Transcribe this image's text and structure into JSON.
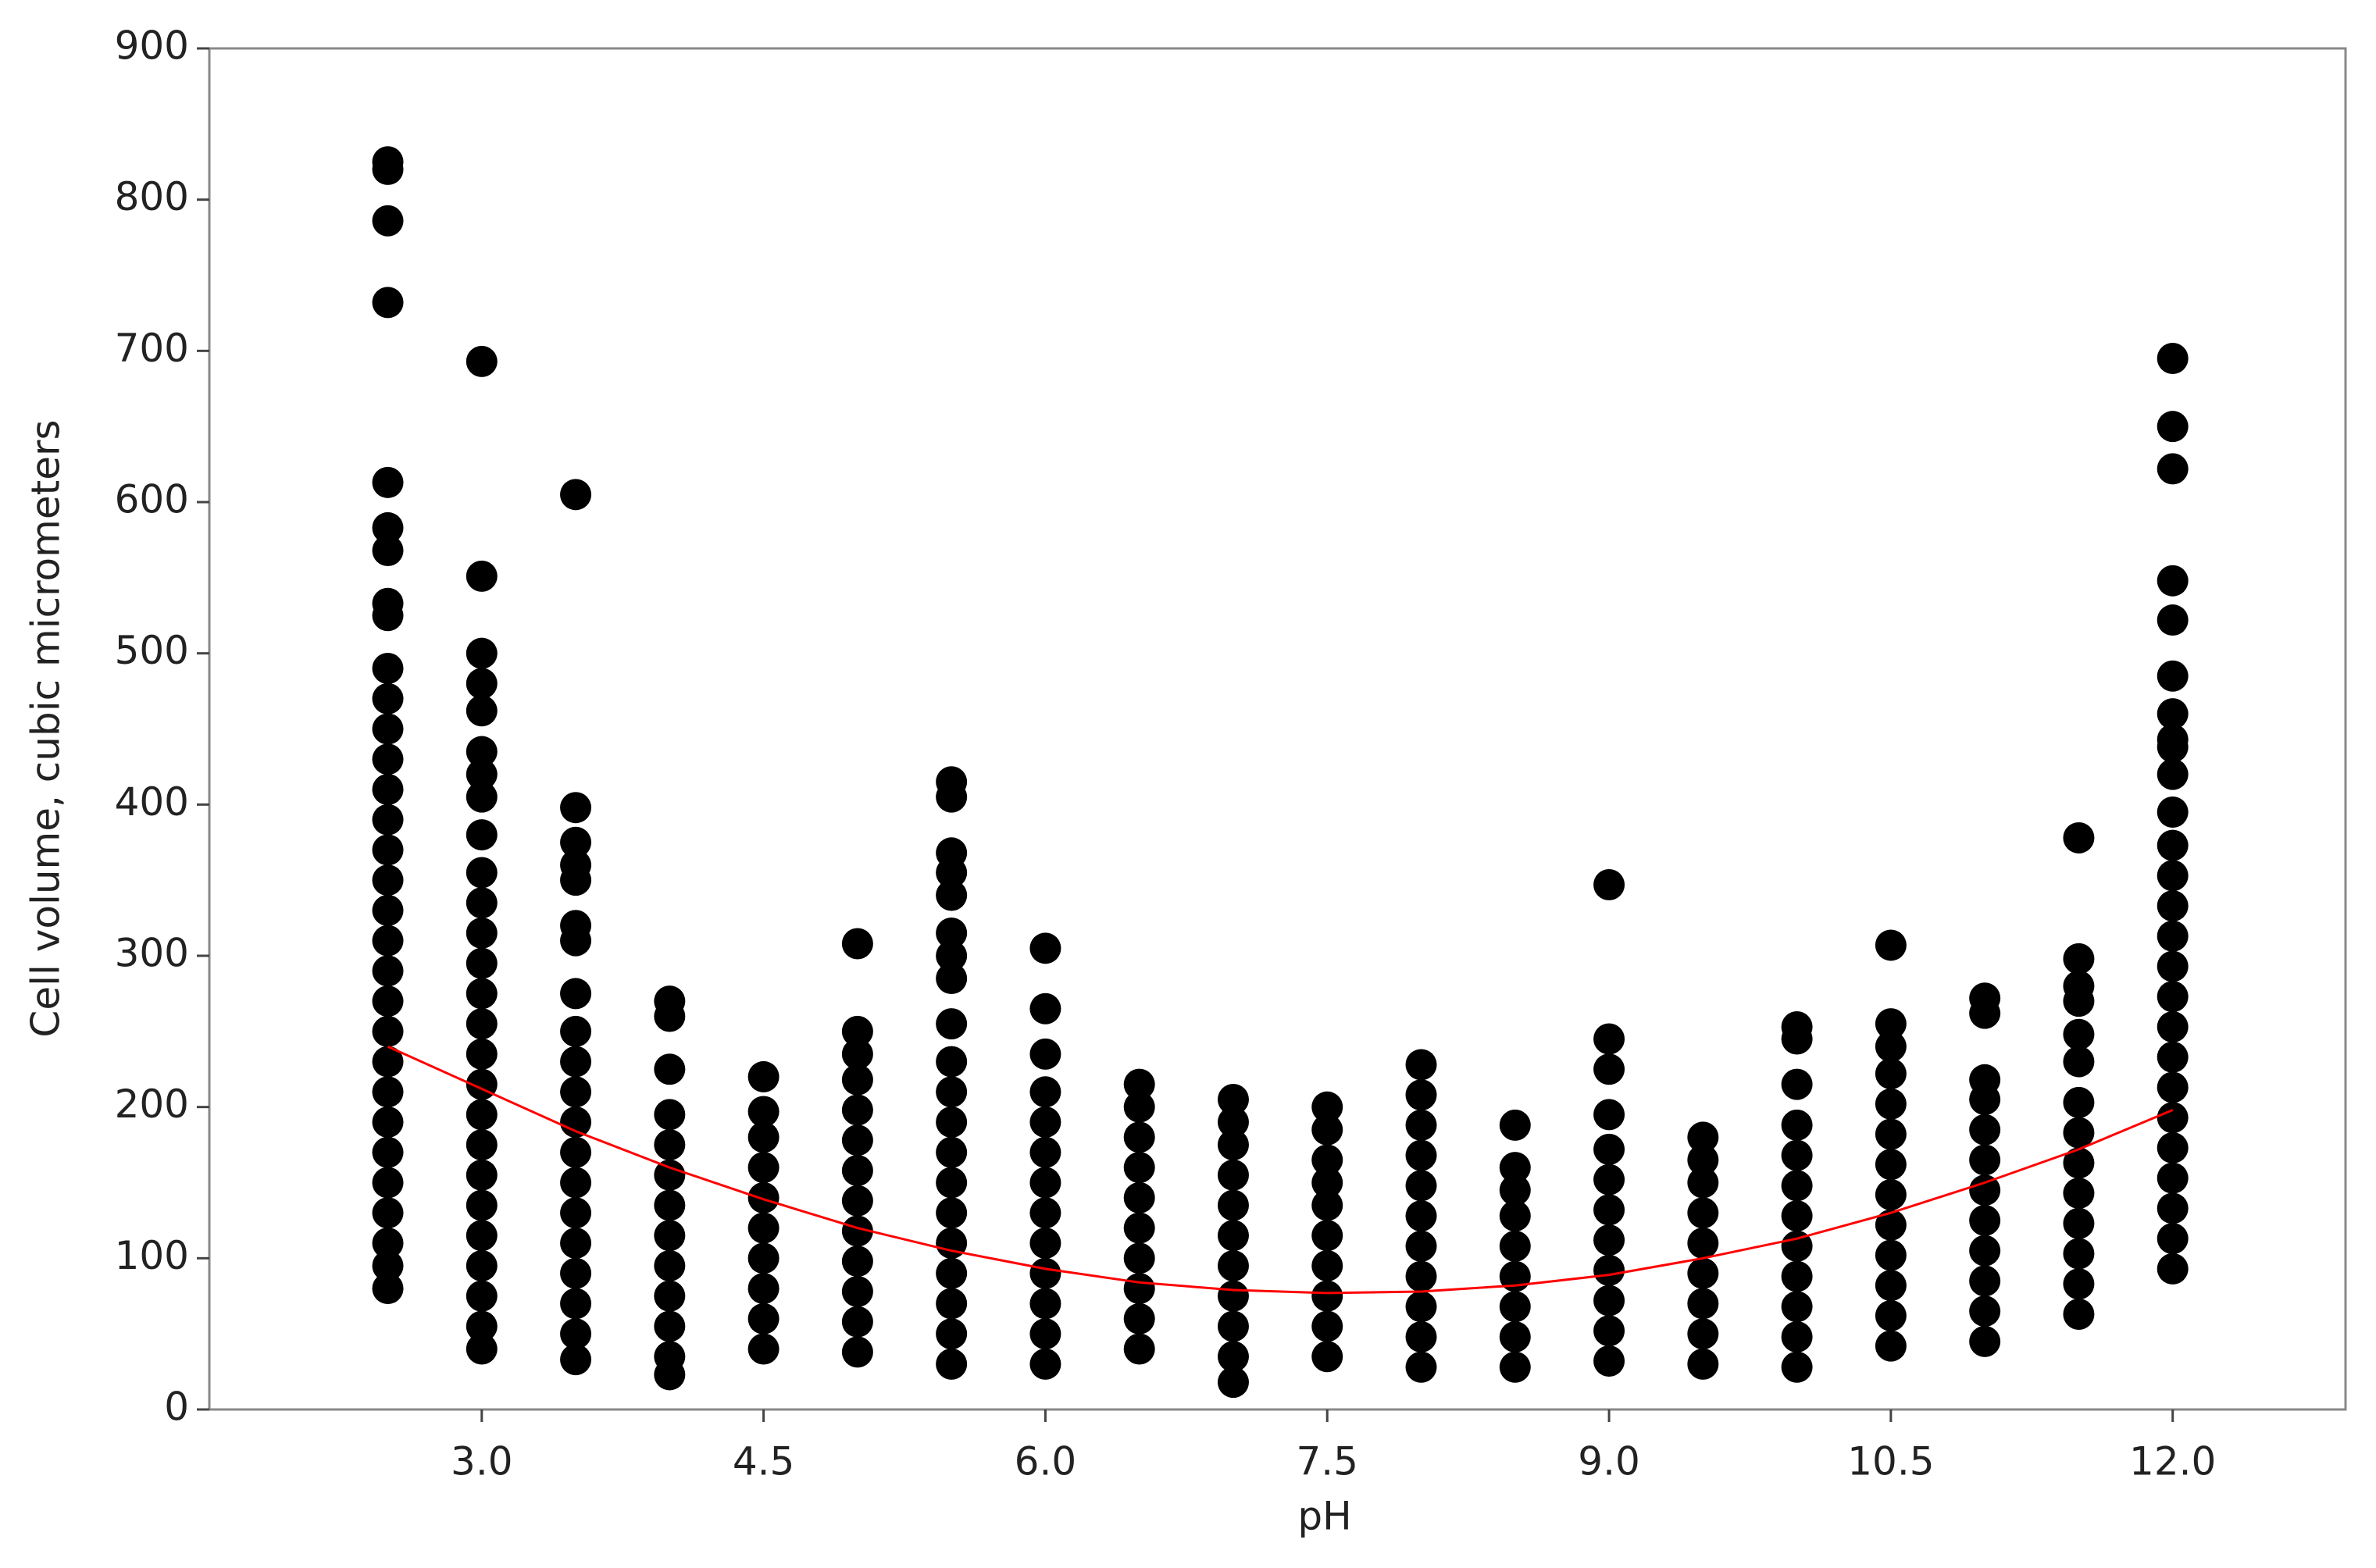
{
  "chart_data": {
    "type": "scatter",
    "x_label": "pH",
    "y_label": "Cell volume, cubic micrometers",
    "xlim": [
      1.55,
      12.92
    ],
    "ylim": [
      0,
      900
    ],
    "xticks": [
      {
        "value": 3,
        "label": "3.0"
      },
      4.5,
      {
        "value": 6,
        "label": "6.0"
      },
      7.5,
      {
        "value": 9,
        "label": "9.0"
      },
      10.5,
      {
        "value": 12,
        "label": "12.0"
      }
    ],
    "yticks": [
      0,
      100,
      200,
      300,
      400,
      500,
      600,
      700,
      800,
      900
    ],
    "series": [
      {
        "type": "scatter",
        "color": "#000000",
        "x": [
          2.5,
          2.5,
          2.5,
          2.5,
          2.5,
          2.5,
          2.5,
          2.5,
          2.5,
          2.5,
          2.5,
          2.5,
          2.5,
          2.5,
          2.5,
          2.5,
          2.5,
          2.5,
          2.5,
          2.5,
          2.5,
          2.5,
          2.5,
          2.5,
          2.5,
          2.5,
          2.5,
          2.5,
          2.5,
          2.5,
          2.5,
          3,
          3,
          3,
          3,
          3,
          3,
          3,
          3,
          3,
          3,
          3,
          3,
          3,
          3,
          3,
          3,
          3,
          3,
          3,
          3,
          3,
          3,
          3,
          3,
          3,
          3,
          3.5,
          3.5,
          3.5,
          3.5,
          3.5,
          3.5,
          3.5,
          3.5,
          3.5,
          3.5,
          3.5,
          3.5,
          3.5,
          3.5,
          3.5,
          3.5,
          3.5,
          3.5,
          3.5,
          3.5,
          4,
          4,
          4,
          4,
          4,
          4,
          4,
          4,
          4,
          4,
          4,
          4,
          4,
          4.5,
          4.5,
          4.5,
          4.5,
          4.5,
          4.5,
          4.5,
          4.5,
          4.5,
          4.5,
          5,
          5,
          5,
          5,
          5,
          5,
          5,
          5,
          5,
          5,
          5,
          5,
          5,
          5.5,
          5.5,
          5.5,
          5.5,
          5.5,
          5.5,
          5.5,
          5.5,
          5.5,
          5.5,
          5.5,
          5.5,
          5.5,
          5.5,
          5.5,
          5.5,
          5.5,
          5.5,
          5.5,
          5.5,
          6,
          6,
          6,
          6,
          6,
          6,
          6,
          6,
          6,
          6,
          6,
          6,
          6,
          6.5,
          6.5,
          6.5,
          6.5,
          6.5,
          6.5,
          6.5,
          6.5,
          6.5,
          6.5,
          7,
          7,
          7,
          7,
          7,
          7,
          7,
          7,
          7,
          7,
          7,
          7.5,
          7.5,
          7.5,
          7.5,
          7.5,
          7.5,
          7.5,
          7.5,
          7.5,
          7.5,
          8,
          8,
          8,
          8,
          8,
          8,
          8,
          8,
          8,
          8,
          8,
          8.5,
          8.5,
          8.5,
          8.5,
          8.5,
          8.5,
          8.5,
          8.5,
          8.5,
          9,
          9,
          9,
          9,
          9,
          9,
          9,
          9,
          9,
          9,
          9,
          9,
          9.5,
          9.5,
          9.5,
          9.5,
          9.5,
          9.5,
          9.5,
          9.5,
          9.5,
          10,
          10,
          10,
          10,
          10,
          10,
          10,
          10,
          10,
          10,
          10,
          10,
          10.5,
          10.5,
          10.5,
          10.5,
          10.5,
          10.5,
          10.5,
          10.5,
          10.5,
          10.5,
          10.5,
          10.5,
          10.5,
          11,
          11,
          11,
          11,
          11,
          11,
          11,
          11,
          11,
          11,
          11,
          11,
          11.5,
          11.5,
          11.5,
          11.5,
          11.5,
          11.5,
          11.5,
          11.5,
          11.5,
          11.5,
          11.5,
          11.5,
          11.5,
          11.5,
          12,
          12,
          12,
          12,
          12,
          12,
          12,
          12,
          12,
          12,
          12,
          12,
          12,
          12,
          12,
          12,
          12,
          12,
          12,
          12,
          12,
          12,
          12,
          12,
          12,
          12
        ],
        "values": [
          80,
          95,
          110,
          130,
          150,
          170,
          190,
          210,
          230,
          250,
          270,
          290,
          310,
          330,
          350,
          370,
          390,
          410,
          430,
          450,
          470,
          490,
          525,
          533,
          568,
          583,
          613,
          732,
          786,
          820,
          825,
          40,
          55,
          75,
          95,
          115,
          135,
          155,
          175,
          195,
          215,
          235,
          255,
          275,
          295,
          315,
          335,
          355,
          380,
          405,
          420,
          435,
          462,
          480,
          500,
          551,
          693,
          33,
          50,
          70,
          90,
          110,
          130,
          150,
          170,
          190,
          210,
          230,
          250,
          275,
          310,
          320,
          350,
          360,
          375,
          398,
          605,
          23,
          35,
          55,
          75,
          95,
          115,
          135,
          155,
          175,
          195,
          225,
          260,
          270,
          40,
          60,
          80,
          100,
          120,
          140,
          160,
          180,
          197,
          220,
          38,
          58,
          78,
          98,
          118,
          138,
          158,
          178,
          198,
          218,
          235,
          250,
          308,
          30,
          50,
          70,
          90,
          110,
          130,
          150,
          170,
          190,
          210,
          230,
          255,
          285,
          300,
          315,
          340,
          355,
          368,
          405,
          415,
          30,
          50,
          70,
          90,
          110,
          130,
          150,
          170,
          190,
          210,
          235,
          265,
          305,
          40,
          60,
          80,
          100,
          120,
          140,
          160,
          180,
          200,
          215,
          18,
          35,
          55,
          75,
          95,
          115,
          135,
          155,
          175,
          190,
          205,
          35,
          55,
          75,
          95,
          115,
          135,
          150,
          165,
          185,
          200,
          28,
          48,
          68,
          88,
          108,
          128,
          148,
          168,
          188,
          208,
          228,
          28,
          48,
          68,
          88,
          108,
          128,
          145,
          160,
          188,
          32,
          52,
          72,
          92,
          112,
          132,
          152,
          172,
          195,
          225,
          245,
          347,
          30,
          50,
          70,
          90,
          110,
          130,
          150,
          165,
          180,
          28,
          48,
          68,
          88,
          108,
          128,
          148,
          168,
          188,
          215,
          245,
          253,
          42,
          62,
          82,
          102,
          122,
          142,
          162,
          182,
          202,
          222,
          240,
          255,
          307,
          45,
          65,
          85,
          105,
          125,
          145,
          165,
          185,
          205,
          218,
          262,
          272,
          63,
          83,
          103,
          123,
          143,
          163,
          183,
          203,
          230,
          248,
          270,
          280,
          298,
          378,
          93,
          113,
          133,
          153,
          173,
          193,
          213,
          233,
          253,
          273,
          293,
          313,
          333,
          353,
          373,
          395,
          420,
          438,
          443,
          460,
          485,
          522,
          548,
          622,
          650,
          695
        ]
      },
      {
        "type": "line",
        "color": "#ff0000",
        "x": [
          2.5,
          3,
          3.5,
          4,
          4.5,
          5,
          5.5,
          6,
          6.5,
          7,
          7.5,
          8,
          8.5,
          9,
          9.5,
          10,
          10.5,
          11,
          11.5,
          12
        ],
        "values": [
          240,
          212,
          184,
          160,
          139,
          120,
          105,
          93,
          84,
          79,
          77,
          78,
          82,
          89,
          100,
          113,
          130,
          150,
          172,
          198
        ]
      }
    ]
  }
}
